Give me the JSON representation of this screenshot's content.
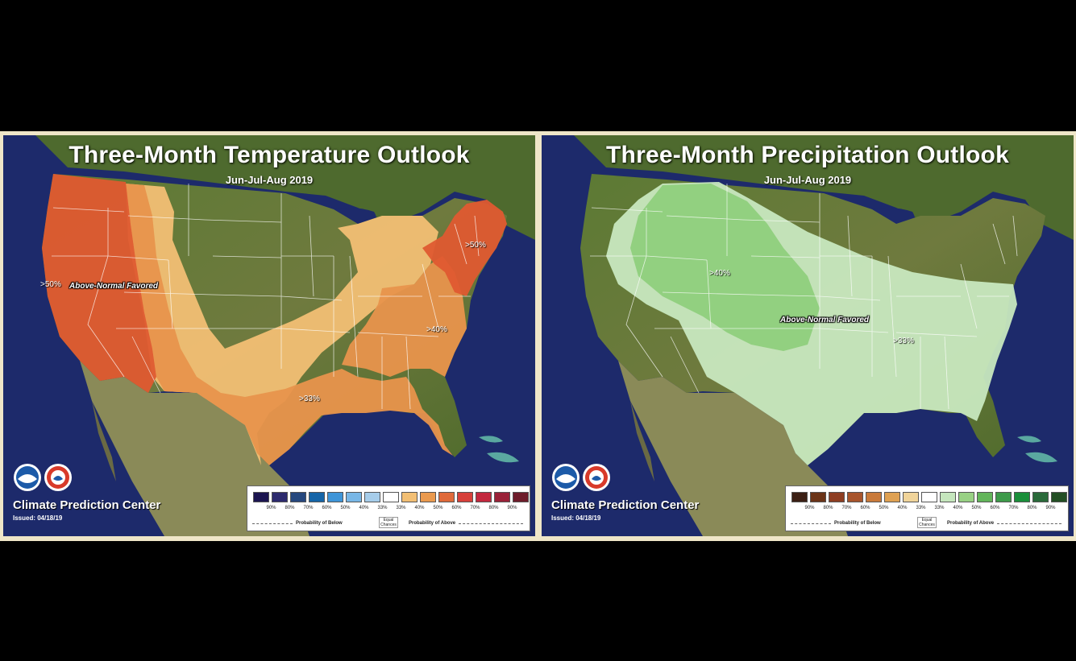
{
  "temperature": {
    "title": "Three-Month Temperature Outlook",
    "subtitle": "Jun-Jul-Aug 2019",
    "label_west": ">50%",
    "label_favored": "Above-Normal Favored",
    "label_ne": ">50%",
    "label_se": ">40%",
    "label_south": ">33%",
    "brand": "Climate Prediction Center",
    "issued": "Issued: 04/18/19",
    "legend": {
      "colors": [
        "#1c1550",
        "#2c2a6e",
        "#26487e",
        "#1565a8",
        "#3e95d8",
        "#78b7e6",
        "#a6cdea",
        "#ffffff",
        "#f2bf74",
        "#ea9a4e",
        "#e06a3a",
        "#d7403a",
        "#c3283e",
        "#9a2238",
        "#6e1c2a"
      ],
      "ticks": [
        "90%",
        "80%",
        "70%",
        "60%",
        "50%",
        "40%",
        "33%",
        "33%",
        "40%",
        "50%",
        "60%",
        "70%",
        "80%",
        "90%"
      ],
      "below_label": "Probability of Below",
      "equal_label": "Equal Chances",
      "above_label": "Probability of Above"
    }
  },
  "precipitation": {
    "title": "Three-Month Precipitation Outlook",
    "subtitle": "Jun-Jul-Aug 2019",
    "label_core": ">40%",
    "label_favored": "Above-Normal Favored",
    "label_east": ">33%",
    "brand": "Climate Prediction Center",
    "issued": "Issued: 04/18/19",
    "legend": {
      "colors": [
        "#3b1f14",
        "#6b3418",
        "#8e3e22",
        "#a8552c",
        "#c97a3a",
        "#dfa152",
        "#f0d49a",
        "#ffffff",
        "#c5e6bd",
        "#98d184",
        "#62b55a",
        "#3d9a4a",
        "#1a8f3a",
        "#2a6a3a",
        "#234f24"
      ],
      "ticks": [
        "90%",
        "80%",
        "70%",
        "60%",
        "50%",
        "40%",
        "33%",
        "33%",
        "40%",
        "50%",
        "60%",
        "70%",
        "80%",
        "90%"
      ],
      "below_label": "Probability of Below",
      "equal_label": "Equal Chances",
      "above_label": "Probability of Above"
    }
  }
}
